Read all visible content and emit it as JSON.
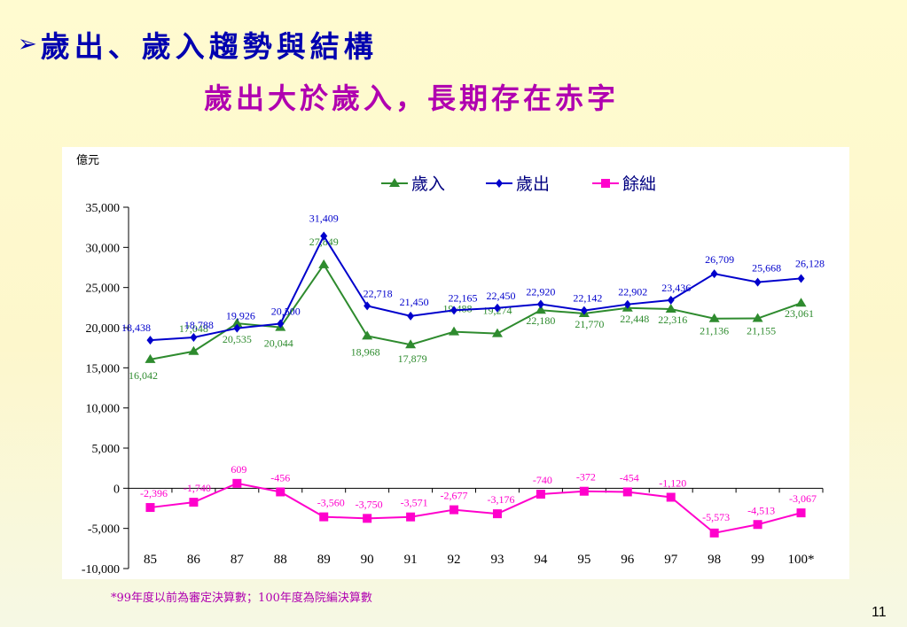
{
  "slide": {
    "title": "歲出、歲入趨勢與結構",
    "subtitle": "歲出大於歲入，長期存在赤字",
    "footnote": "*99年度以前為審定決算數；100年度為院編決算數",
    "page_number": "11",
    "bullet_icon": "arrow-right-icon"
  },
  "chart_data": {
    "type": "line",
    "title": "",
    "ylabel": "億元",
    "xlabel": "",
    "ylim": [
      -10000,
      35000
    ],
    "yticks": [
      35000,
      30000,
      25000,
      20000,
      15000,
      10000,
      5000,
      0,
      -5000,
      -10000
    ],
    "ytick_labels": [
      "35,000",
      "30,000",
      "25,000",
      "20,000",
      "15,000",
      "10,000",
      "5,000",
      "0",
      "-5,000",
      "-10,000"
    ],
    "categories": [
      "85",
      "86",
      "87",
      "88",
      "89",
      "90",
      "91",
      "92",
      "93",
      "94",
      "95",
      "96",
      "97",
      "98",
      "99",
      "100*"
    ],
    "legend_position": "top",
    "grid": false,
    "series": [
      {
        "name": "歲入",
        "color": "#2e8b2e",
        "marker": "triangle",
        "values": [
          16042,
          17048,
          20535,
          20044,
          27849,
          18968,
          17879,
          19488,
          19274,
          22180,
          21770,
          22448,
          22316,
          21136,
          21155,
          23061
        ],
        "labels": [
          "16,042",
          "17,048",
          "20,535",
          "20,044",
          "27,849",
          "18,968",
          "17,879",
          "19,488",
          "19,274",
          "22,180",
          "21,770",
          "22,448",
          "22,316",
          "21,136",
          "21,155",
          "23,061"
        ]
      },
      {
        "name": "歲出",
        "color": "#0000cc",
        "marker": "diamond",
        "values": [
          18438,
          18788,
          19926,
          20500,
          31409,
          22718,
          21450,
          22165,
          22450,
          22920,
          22142,
          22902,
          23436,
          26709,
          25668,
          26128
        ],
        "labels": [
          "18,438",
          "18,788",
          "19,926",
          "20,500",
          "31,409",
          "22,718",
          "21,450",
          "22,165",
          "22,450",
          "22,920",
          "22,142",
          "22,902",
          "23,436",
          "26,709",
          "25,668",
          "26,128"
        ]
      },
      {
        "name": "餘絀",
        "color": "#ff00cc",
        "marker": "square",
        "values": [
          -2396,
          -1740,
          609,
          -456,
          -3560,
          -3750,
          -3571,
          -2677,
          -3176,
          -740,
          -372,
          -454,
          -1120,
          -5573,
          -4513,
          -3067
        ],
        "labels": [
          "-2,396",
          "-1,740",
          "609",
          "-456",
          "-3,560",
          "-3,750",
          "-3,571",
          "-2,677",
          "-3,176",
          "-740",
          "-372",
          "-454",
          "-1,120",
          "-5,573",
          "-4,513",
          "-3,067"
        ]
      }
    ]
  }
}
